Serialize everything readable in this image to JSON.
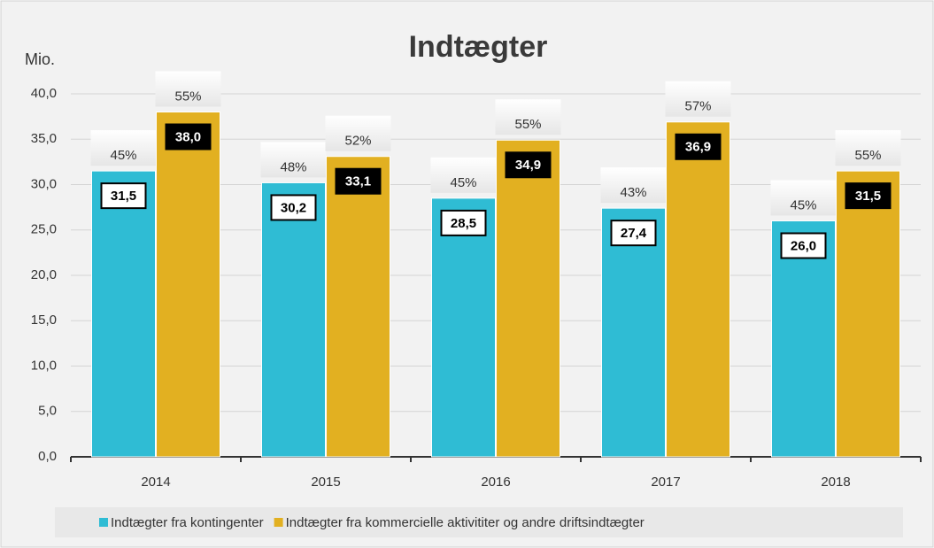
{
  "chart_data": {
    "type": "bar",
    "title": "Indtægter",
    "y_label": "Mio.",
    "categories": [
      "2014",
      "2015",
      "2016",
      "2017",
      "2018"
    ],
    "series": [
      {
        "name": "Indtægter fra kontingenter",
        "color": "#2fbcd4",
        "values": [
          31.5,
          30.2,
          28.5,
          27.4,
          26.0
        ],
        "value_labels": [
          "31,5",
          "30,2",
          "28,5",
          "27,4",
          "26,0"
        ],
        "share_labels": [
          "45%",
          "48%",
          "45%",
          "43%",
          "45%"
        ]
      },
      {
        "name": "Indtægter fra kommercielle aktivititer og andre driftsindtægter",
        "color": "#e2b021",
        "values": [
          38.0,
          33.1,
          34.9,
          36.9,
          31.5
        ],
        "value_labels": [
          "38,0",
          "33,1",
          "34,9",
          "36,9",
          "31,5"
        ],
        "share_labels": [
          "55%",
          "52%",
          "55%",
          "57%",
          "55%"
        ]
      }
    ],
    "ylim": [
      0,
      40
    ],
    "yticks": [
      {
        "value": 0,
        "label": "0,0"
      },
      {
        "value": 5,
        "label": "5,0"
      },
      {
        "value": 10,
        "label": "10,0"
      },
      {
        "value": 15,
        "label": "15,0"
      },
      {
        "value": 20,
        "label": "20,0"
      },
      {
        "value": 25,
        "label": "25,0"
      },
      {
        "value": 30,
        "label": "30,0"
      },
      {
        "value": 35,
        "label": "35,0"
      },
      {
        "value": 40,
        "label": "40,0"
      }
    ],
    "grid": true,
    "legend": "bottom"
  }
}
